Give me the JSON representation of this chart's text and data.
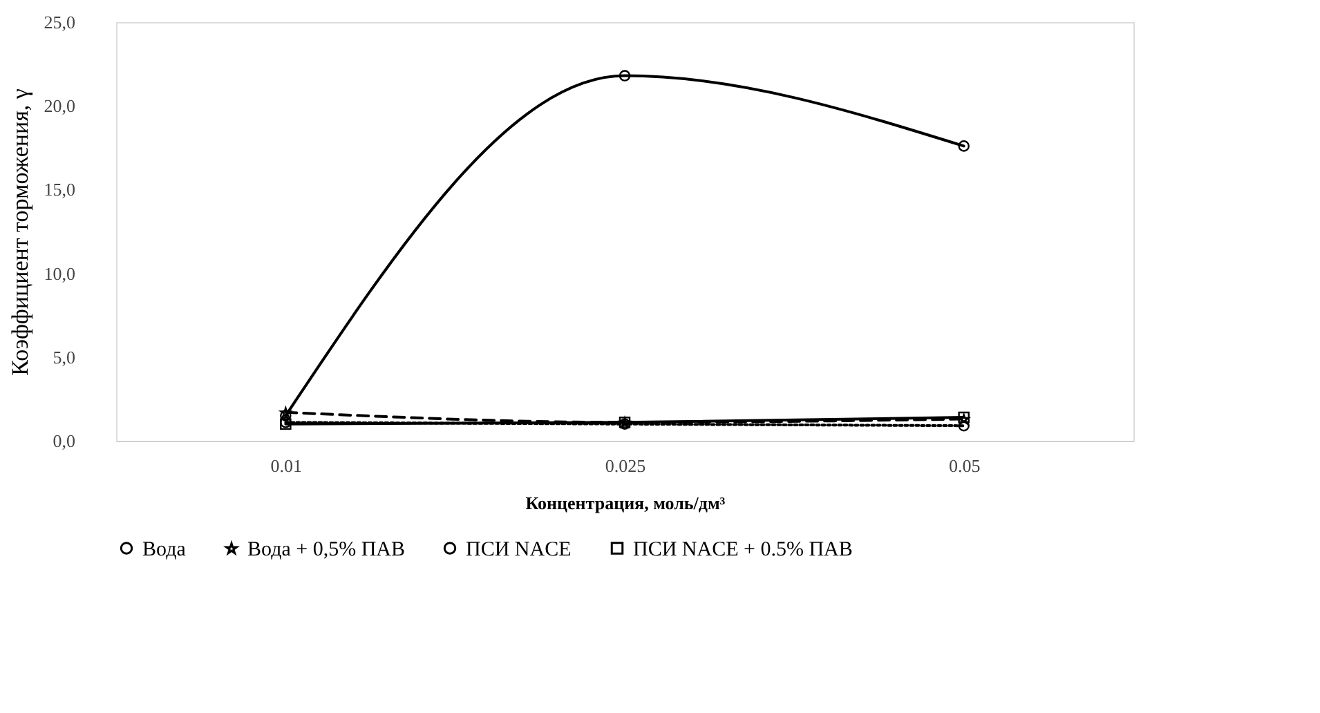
{
  "chart_data": {
    "type": "line",
    "xlabel": "Концентрация, моль/дм³",
    "ylabel": "Коэффициент торможения, γ",
    "categories": [
      "0.01",
      "0.025",
      "0.05"
    ],
    "ylim": [
      0,
      25
    ],
    "yticks": [
      {
        "value": 0,
        "label": "0,0"
      },
      {
        "value": 5,
        "label": "5,0"
      },
      {
        "value": 10,
        "label": "10,0"
      },
      {
        "value": 15,
        "label": "15,0"
      },
      {
        "value": 20,
        "label": "20,0"
      },
      {
        "value": 25,
        "label": "25,0"
      }
    ],
    "grid": false,
    "legend": "bottom",
    "series": [
      {
        "name": "Вода",
        "color": "#000000",
        "marker": "circle",
        "line_style": "solid",
        "values": [
          1.5,
          21.8,
          17.6
        ]
      },
      {
        "name": "Вода + 0,5% ПАВ",
        "color": "#000000",
        "marker": "star",
        "line_style": "dashed",
        "values": [
          1.7,
          1.1,
          1.3
        ]
      },
      {
        "name": "ПСИ NACE",
        "color": "#000000",
        "marker": "circle",
        "line_style": "dotted",
        "values": [
          1.1,
          1.0,
          0.9
        ]
      },
      {
        "name": "ПСИ NACE + 0.5% ПАВ",
        "color": "#000000",
        "marker": "square",
        "line_style": "solid",
        "values": [
          1.0,
          1.1,
          1.4
        ]
      }
    ]
  }
}
